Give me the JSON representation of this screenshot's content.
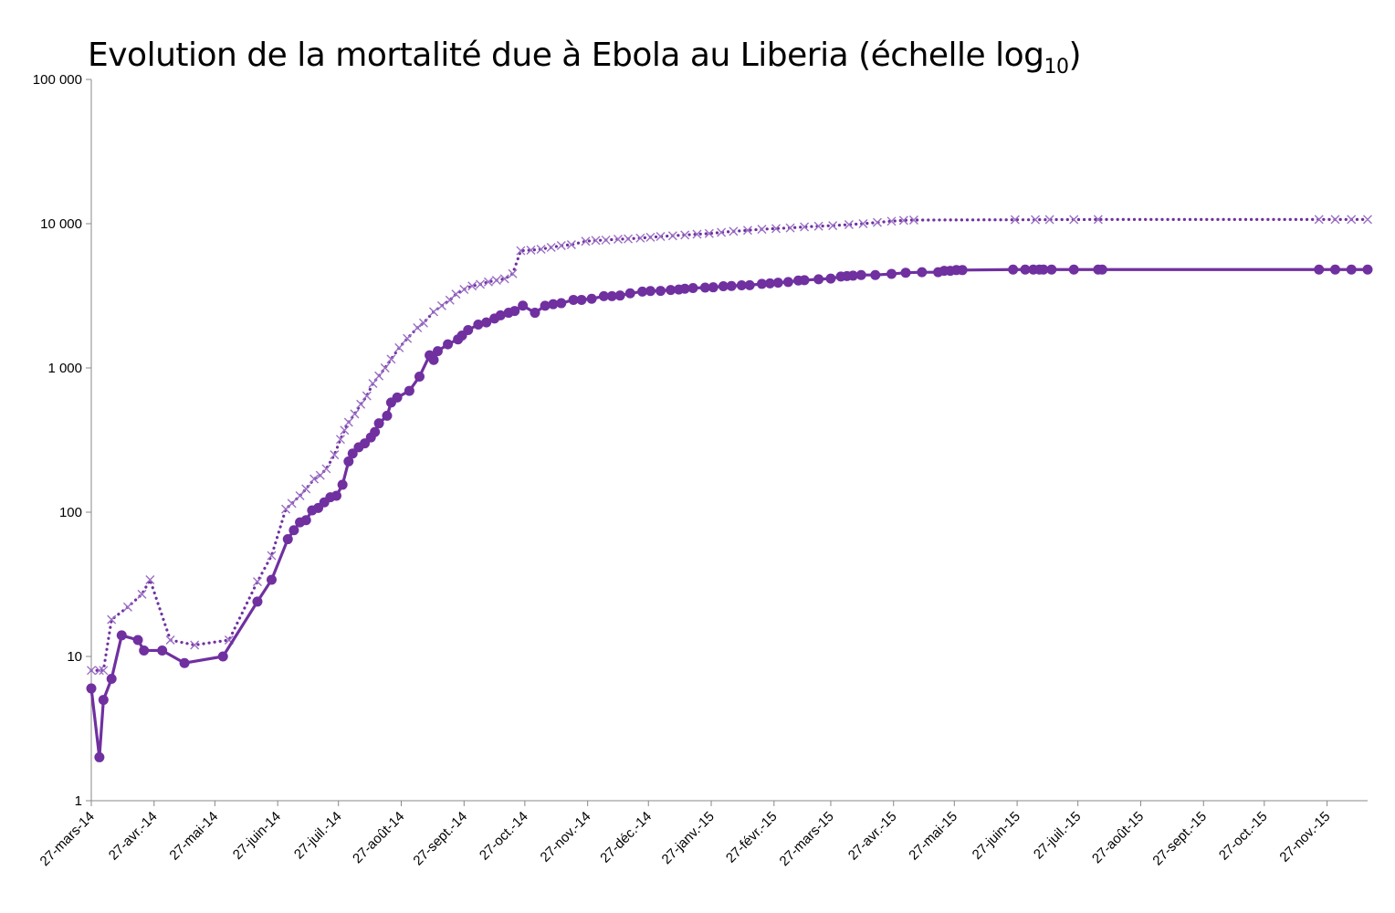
{
  "chart_data": {
    "type": "line",
    "title": "Evolution de la mortalité due à Ebola au Liberia (échelle log",
    "title_subscript": "10",
    "title_suffix": ")",
    "yscale": "log10",
    "ylim": [
      1,
      100000
    ],
    "y_ticks": [
      1,
      10,
      100,
      1000,
      10000,
      100000
    ],
    "y_tick_labels": [
      "1",
      "10",
      "100",
      "1 000",
      "10 000",
      "100 000"
    ],
    "xlim": [
      "2014-03-27",
      "2015-12-17"
    ],
    "x_ticks": [
      "2014-03-27",
      "2014-04-27",
      "2014-05-27",
      "2014-06-27",
      "2014-07-27",
      "2014-08-27",
      "2014-09-27",
      "2014-10-27",
      "2014-11-27",
      "2014-12-27",
      "2015-01-27",
      "2015-02-27",
      "2015-03-27",
      "2015-04-27",
      "2015-05-27",
      "2015-06-27",
      "2015-07-27",
      "2015-08-27",
      "2015-09-27",
      "2015-10-27",
      "2015-11-27"
    ],
    "x_tick_labels": [
      "27-mars-14",
      "27-avr.-14",
      "27-mai-14",
      "27-juin-14",
      "27-juil.-14",
      "27-août-14",
      "27-sept.-14",
      "27-oct.-14",
      "27-nov.-14",
      "27-déc.-14",
      "27-janv.-15",
      "27-févr.-15",
      "27-mars-15",
      "27-avr.-15",
      "27-mai-15",
      "27-juin-15",
      "27-juil.-15",
      "27-août-15",
      "27-sept.-15",
      "27-oct.-15",
      "27-nov.-15"
    ],
    "grid": false,
    "legend": "none",
    "series": [
      {
        "style": "dotted",
        "marker": "x",
        "color": "#7030A0",
        "points": [
          [
            "2014-03-27",
            8
          ],
          [
            "2014-03-31",
            8
          ],
          [
            "2014-04-02",
            8
          ],
          [
            "2014-04-06",
            18
          ],
          [
            "2014-04-14",
            22
          ],
          [
            "2014-04-21",
            27
          ],
          [
            "2014-04-25",
            34
          ],
          [
            "2014-05-05",
            13
          ],
          [
            "2014-05-17",
            12
          ],
          [
            "2014-06-03",
            13
          ],
          [
            "2014-06-17",
            33
          ],
          [
            "2014-06-24",
            50
          ],
          [
            "2014-07-01",
            105
          ],
          [
            "2014-07-04",
            115
          ],
          [
            "2014-07-08",
            130
          ],
          [
            "2014-07-11",
            145
          ],
          [
            "2014-07-15",
            170
          ],
          [
            "2014-07-18",
            180
          ],
          [
            "2014-07-21",
            200
          ],
          [
            "2014-07-25",
            250
          ],
          [
            "2014-07-28",
            320
          ],
          [
            "2014-07-30",
            370
          ],
          [
            "2014-08-01",
            420
          ],
          [
            "2014-08-04",
            480
          ],
          [
            "2014-08-07",
            560
          ],
          [
            "2014-08-10",
            640
          ],
          [
            "2014-08-13",
            780
          ],
          [
            "2014-08-16",
            880
          ],
          [
            "2014-08-19",
            1000
          ],
          [
            "2014-08-22",
            1150
          ],
          [
            "2014-08-26",
            1380
          ],
          [
            "2014-08-30",
            1600
          ],
          [
            "2014-09-04",
            1900
          ],
          [
            "2014-09-07",
            2050
          ],
          [
            "2014-09-12",
            2450
          ],
          [
            "2014-09-16",
            2700
          ],
          [
            "2014-09-20",
            2950
          ],
          [
            "2014-09-23",
            3250
          ],
          [
            "2014-09-27",
            3500
          ],
          [
            "2014-10-01",
            3700
          ],
          [
            "2014-10-05",
            3800
          ],
          [
            "2014-10-09",
            3950
          ],
          [
            "2014-10-13",
            4050
          ],
          [
            "2014-10-17",
            4150
          ],
          [
            "2014-10-21",
            4500
          ],
          [
            "2014-10-25",
            6500
          ],
          [
            "2014-10-30",
            6550
          ],
          [
            "2014-11-04",
            6650
          ],
          [
            "2014-11-09",
            6850
          ],
          [
            "2014-11-14",
            7050
          ],
          [
            "2014-11-19",
            7150
          ],
          [
            "2014-11-26",
            7550
          ],
          [
            "2014-12-01",
            7650
          ],
          [
            "2014-12-06",
            7700
          ],
          [
            "2014-12-12",
            7800
          ],
          [
            "2014-12-17",
            7850
          ],
          [
            "2014-12-23",
            7950
          ],
          [
            "2014-12-28",
            8050
          ],
          [
            "2015-01-02",
            8150
          ],
          [
            "2015-01-08",
            8250
          ],
          [
            "2015-01-14",
            8350
          ],
          [
            "2015-01-20",
            8450
          ],
          [
            "2015-01-26",
            8550
          ],
          [
            "2015-02-01",
            8700
          ],
          [
            "2015-02-07",
            8850
          ],
          [
            "2015-02-14",
            9000
          ],
          [
            "2015-02-21",
            9150
          ],
          [
            "2015-02-28",
            9250
          ],
          [
            "2015-03-07",
            9350
          ],
          [
            "2015-03-14",
            9500
          ],
          [
            "2015-03-21",
            9600
          ],
          [
            "2015-03-28",
            9700
          ],
          [
            "2015-04-05",
            9850
          ],
          [
            "2015-04-12",
            10000
          ],
          [
            "2015-04-19",
            10200
          ],
          [
            "2015-04-26",
            10400
          ],
          [
            "2015-05-02",
            10550
          ],
          [
            "2015-05-07",
            10600
          ],
          [
            "2015-06-26",
            10650
          ],
          [
            "2015-07-06",
            10650
          ],
          [
            "2015-07-13",
            10670
          ],
          [
            "2015-07-25",
            10680
          ],
          [
            "2015-08-06",
            10700
          ],
          [
            "2015-11-23",
            10700
          ],
          [
            "2015-12-01",
            10700
          ],
          [
            "2015-12-09",
            10700
          ],
          [
            "2015-12-17",
            10700
          ]
        ]
      },
      {
        "style": "solid",
        "marker": "circle",
        "color": "#7030A0",
        "points": [
          [
            "2014-03-27",
            6
          ],
          [
            "2014-03-31",
            2
          ],
          [
            "2014-04-02",
            5
          ],
          [
            "2014-04-06",
            7
          ],
          [
            "2014-04-11",
            14
          ],
          [
            "2014-04-19",
            13
          ],
          [
            "2014-04-22",
            11
          ],
          [
            "2014-05-01",
            11
          ],
          [
            "2014-05-12",
            9
          ],
          [
            "2014-05-31",
            10
          ],
          [
            "2014-06-17",
            24
          ],
          [
            "2014-06-24",
            34
          ],
          [
            "2014-07-02",
            65
          ],
          [
            "2014-07-05",
            75
          ],
          [
            "2014-07-08",
            85
          ],
          [
            "2014-07-11",
            88
          ],
          [
            "2014-07-14",
            103
          ],
          [
            "2014-07-17",
            107
          ],
          [
            "2014-07-20",
            117
          ],
          [
            "2014-07-23",
            127
          ],
          [
            "2014-07-26",
            130
          ],
          [
            "2014-07-29",
            155
          ],
          [
            "2014-08-01",
            225
          ],
          [
            "2014-08-03",
            255
          ],
          [
            "2014-08-06",
            282
          ],
          [
            "2014-08-09",
            300
          ],
          [
            "2014-08-12",
            330
          ],
          [
            "2014-08-14",
            360
          ],
          [
            "2014-08-16",
            413
          ],
          [
            "2014-08-20",
            466
          ],
          [
            "2014-08-22",
            576
          ],
          [
            "2014-08-25",
            624
          ],
          [
            "2014-08-31",
            694
          ],
          [
            "2014-09-05",
            871
          ],
          [
            "2014-09-10",
            1224
          ],
          [
            "2014-09-12",
            1137
          ],
          [
            "2014-09-14",
            1307
          ],
          [
            "2014-09-19",
            1459
          ],
          [
            "2014-09-24",
            1578
          ],
          [
            "2014-09-26",
            1677
          ],
          [
            "2014-09-29",
            1830
          ],
          [
            "2014-10-04",
            1998
          ],
          [
            "2014-10-08",
            2069
          ],
          [
            "2014-10-12",
            2201
          ],
          [
            "2014-10-15",
            2316
          ],
          [
            "2014-10-19",
            2413
          ],
          [
            "2014-10-22",
            2484
          ],
          [
            "2014-10-26",
            2705
          ],
          [
            "2014-11-01",
            2413
          ],
          [
            "2014-11-06",
            2697
          ],
          [
            "2014-11-10",
            2766
          ],
          [
            "2014-11-14",
            2812
          ],
          [
            "2014-11-20",
            2964
          ],
          [
            "2014-11-24",
            2964
          ],
          [
            "2014-11-29",
            3016
          ],
          [
            "2014-12-05",
            3145
          ],
          [
            "2014-12-09",
            3145
          ],
          [
            "2014-12-13",
            3177
          ],
          [
            "2014-12-18",
            3290
          ],
          [
            "2014-12-24",
            3384
          ],
          [
            "2014-12-28",
            3413
          ],
          [
            "2015-01-02",
            3423
          ],
          [
            "2015-01-07",
            3471
          ],
          [
            "2015-01-11",
            3496
          ],
          [
            "2015-01-14",
            3538
          ],
          [
            "2015-01-18",
            3577
          ],
          [
            "2015-01-24",
            3605
          ],
          [
            "2015-01-28",
            3622
          ],
          [
            "2015-02-02",
            3686
          ],
          [
            "2015-02-06",
            3700
          ],
          [
            "2015-02-11",
            3737
          ],
          [
            "2015-02-15",
            3746
          ],
          [
            "2015-02-21",
            3826
          ],
          [
            "2015-02-25",
            3858
          ],
          [
            "2015-03-01",
            3900
          ],
          [
            "2015-03-06",
            3940
          ],
          [
            "2015-03-11",
            4037
          ],
          [
            "2015-03-14",
            4057
          ],
          [
            "2015-03-21",
            4117
          ],
          [
            "2015-03-27",
            4162
          ],
          [
            "2015-04-01",
            4301
          ],
          [
            "2015-04-04",
            4332
          ],
          [
            "2015-04-07",
            4362
          ],
          [
            "2015-04-11",
            4408
          ],
          [
            "2015-04-18",
            4408
          ],
          [
            "2015-04-26",
            4484
          ],
          [
            "2015-05-03",
            4573
          ],
          [
            "2015-05-11",
            4608
          ],
          [
            "2015-05-19",
            4608
          ],
          [
            "2015-05-22",
            4716
          ],
          [
            "2015-05-25",
            4716
          ],
          [
            "2015-05-28",
            4769
          ],
          [
            "2015-05-31",
            4769
          ],
          [
            "2015-06-25",
            4806
          ],
          [
            "2015-07-01",
            4806
          ],
          [
            "2015-07-05",
            4806
          ],
          [
            "2015-07-08",
            4806
          ],
          [
            "2015-07-10",
            4806
          ],
          [
            "2015-07-14",
            4806
          ],
          [
            "2015-07-25",
            4808
          ],
          [
            "2015-08-06",
            4808
          ],
          [
            "2015-08-08",
            4808
          ],
          [
            "2015-11-23",
            4808
          ],
          [
            "2015-12-01",
            4808
          ],
          [
            "2015-12-09",
            4808
          ],
          [
            "2015-12-17",
            4808
          ]
        ]
      }
    ]
  }
}
